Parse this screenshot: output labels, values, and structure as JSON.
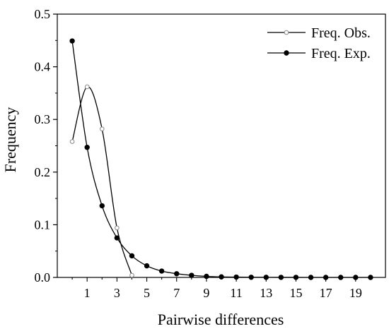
{
  "chart_data": {
    "type": "line",
    "title": "",
    "xlabel": "Pairwise differences",
    "ylabel": "Frequency",
    "xlim": [
      -1,
      21
    ],
    "ylim": [
      0,
      0.5
    ],
    "x_ticks": [
      1,
      3,
      5,
      7,
      9,
      11,
      13,
      15,
      17,
      19
    ],
    "y_ticks": [
      "0.0",
      "0.1",
      "0.2",
      "0.3",
      "0.4",
      "0.5"
    ],
    "grid": false,
    "legend_position": "top-right",
    "series": [
      {
        "name": "Freq. Obs.",
        "marker": "open-circle",
        "color": "#000000",
        "x": [
          0,
          1,
          2,
          3,
          4
        ],
        "y": [
          0.258,
          0.362,
          0.282,
          0.094,
          0.004
        ]
      },
      {
        "name": "Freq. Exp.",
        "marker": "filled-circle",
        "color": "#000000",
        "x": [
          0,
          1,
          2,
          3,
          4,
          5,
          6,
          7,
          8,
          9,
          10,
          11,
          12,
          13,
          14,
          15,
          16,
          17,
          18,
          19,
          20
        ],
        "y": [
          0.449,
          0.247,
          0.136,
          0.075,
          0.041,
          0.022,
          0.012,
          0.007,
          0.004,
          0.002,
          0.001,
          0.0006,
          0.0003,
          0.0002,
          0.0001,
          0.0001,
          0.0,
          0.0,
          0.0,
          0.0,
          0.0
        ]
      }
    ]
  }
}
